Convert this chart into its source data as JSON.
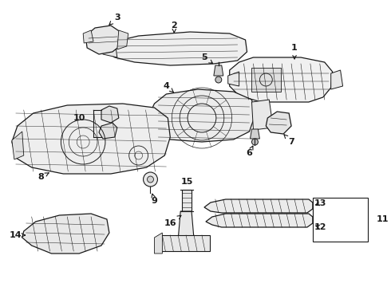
{
  "bg_color": "#ffffff",
  "line_color": "#1a1a1a",
  "fig_width": 4.9,
  "fig_height": 3.6,
  "dpi": 100,
  "label_fs": 7.5,
  "parts": {
    "part1_label": "1",
    "part2_label": "2",
    "part3_label": "3",
    "part4_label": "4",
    "part5_label": "5",
    "part6_label": "6",
    "part7_label": "7",
    "part8_label": "8",
    "part9_label": "9",
    "part10_label": "10",
    "part11_label": "11",
    "part12_label": "12",
    "part13_label": "13",
    "part14_label": "14",
    "part15_label": "15",
    "part16_label": "16"
  }
}
